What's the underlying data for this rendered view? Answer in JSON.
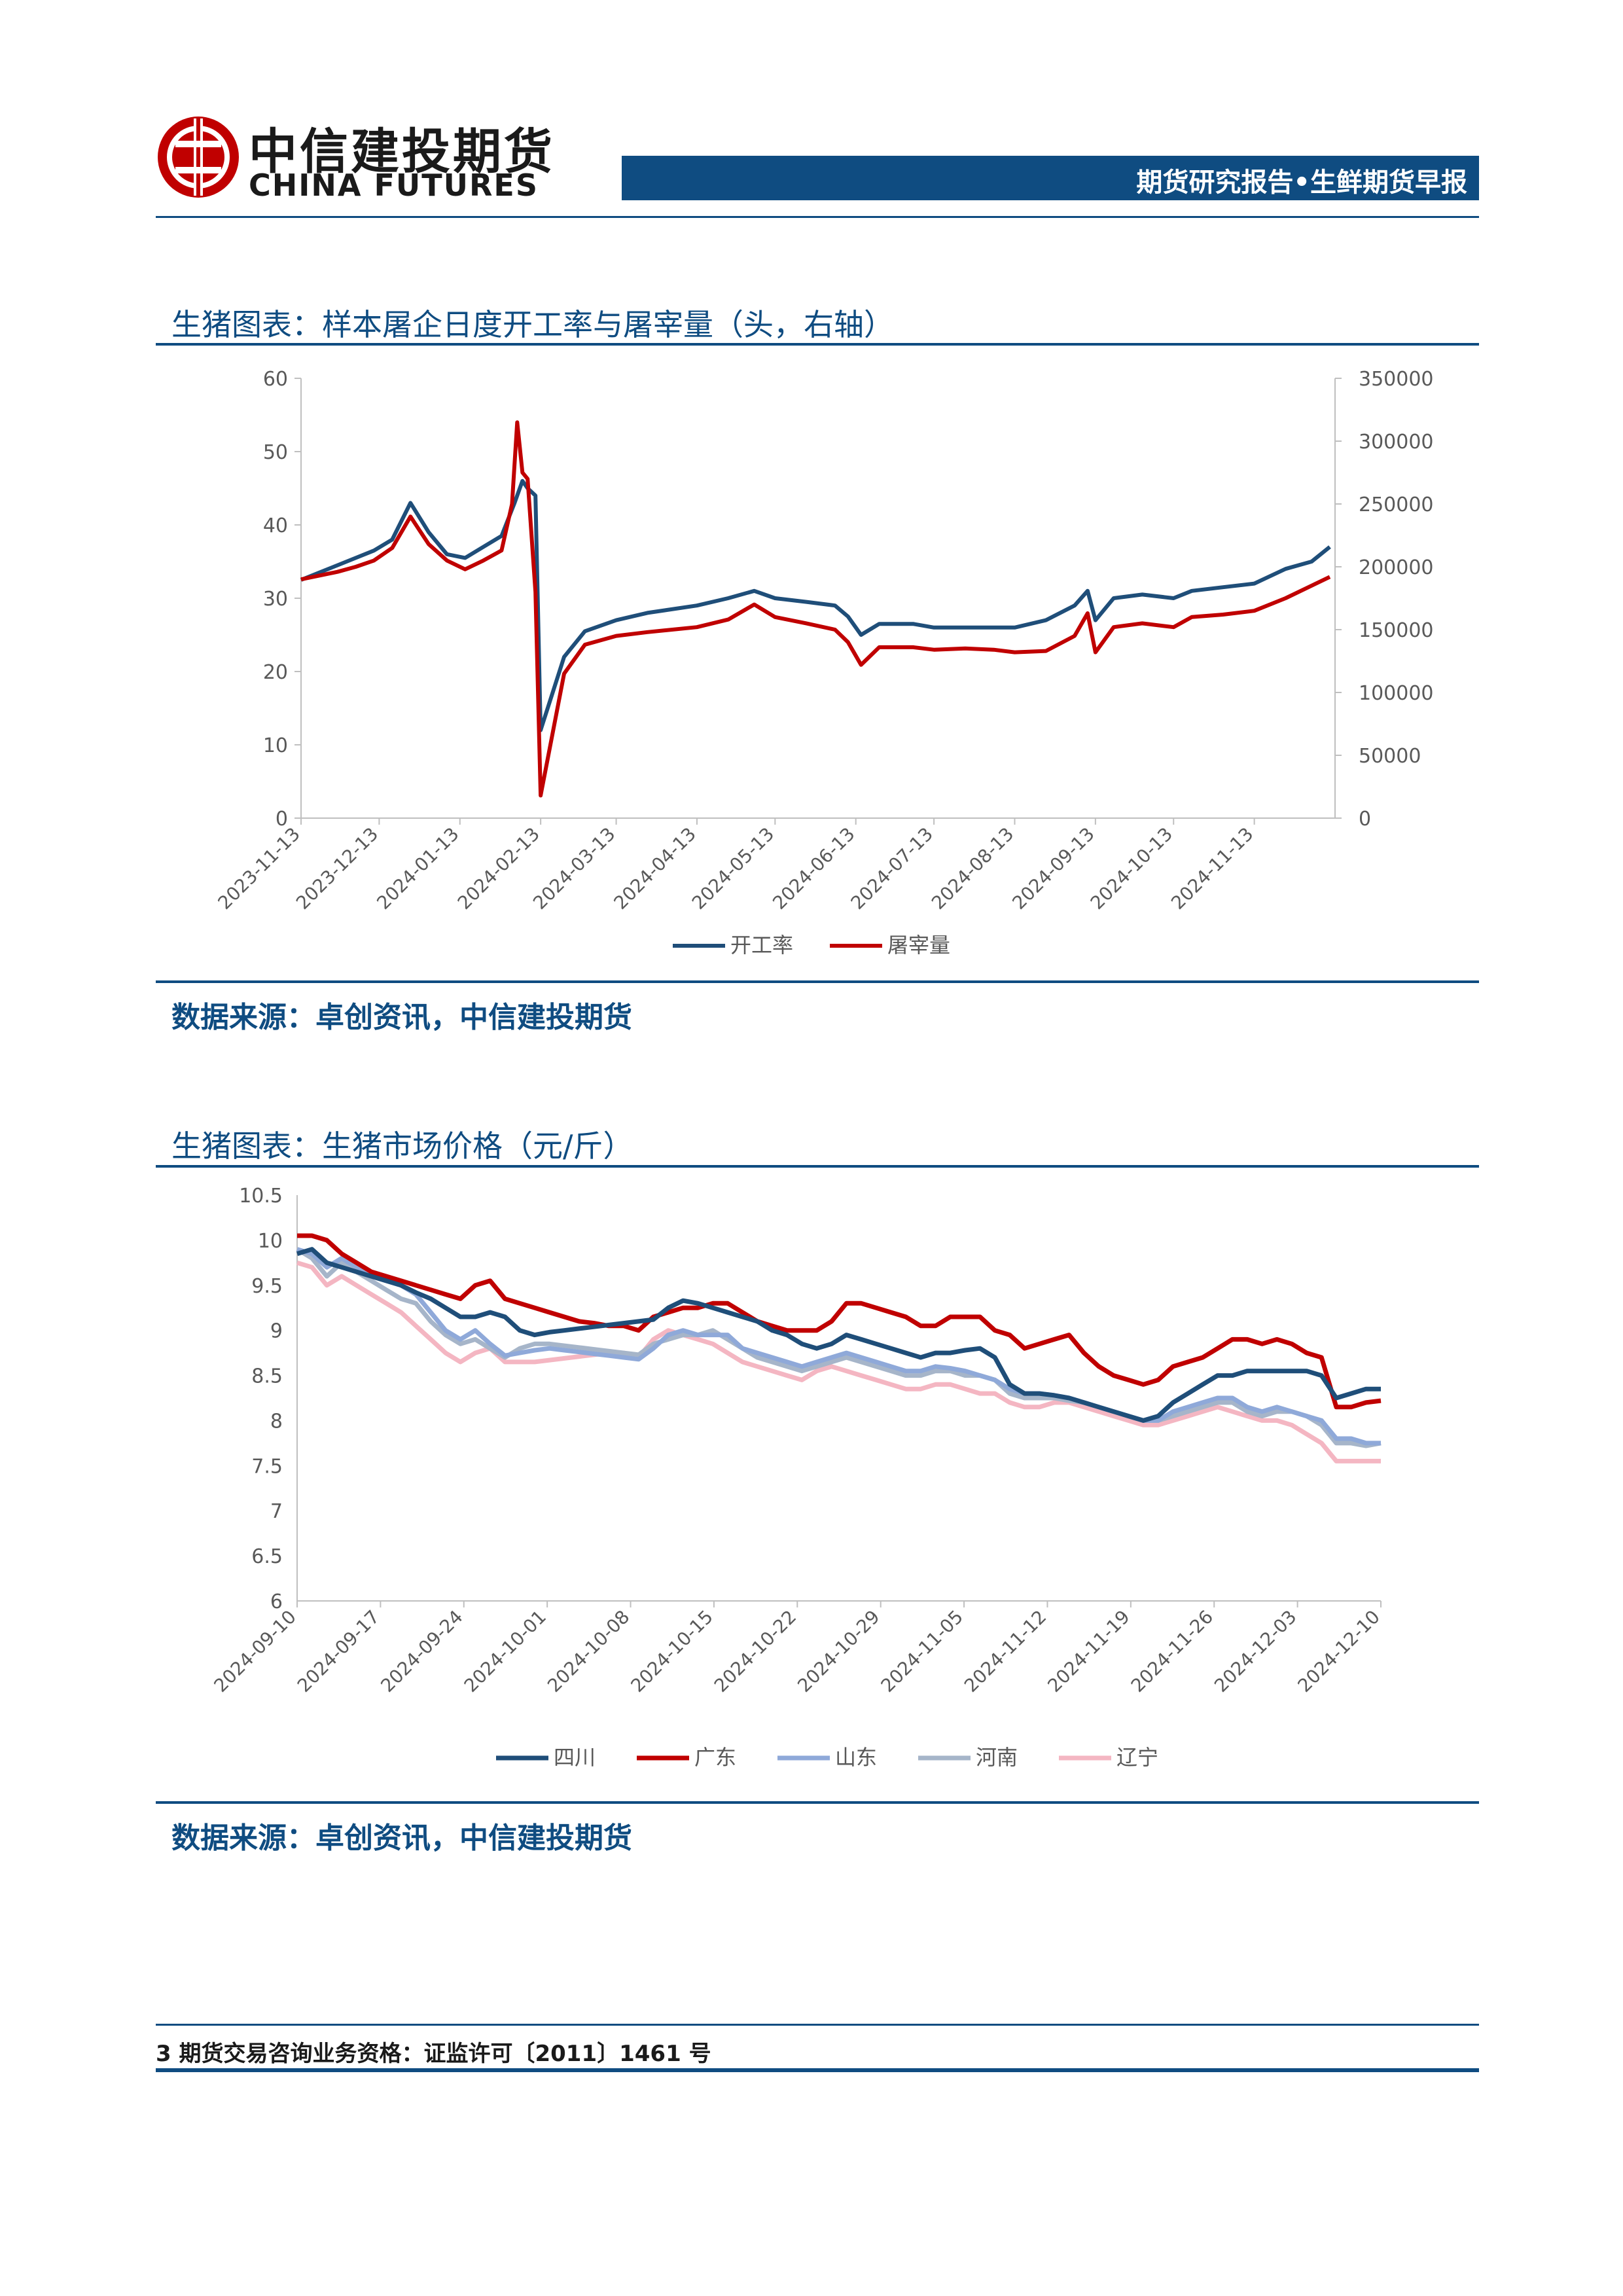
{
  "header": {
    "logo_cn": "中信建投期货",
    "logo_en": "CHINA FUTURES",
    "banner": "期货研究报告•生鲜期货早报"
  },
  "section1": {
    "title": "生猪图表：样本屠企日度开工率与屠宰量（头，右轴）",
    "source": "数据来源：卓创资讯，中信建投期货"
  },
  "section2": {
    "title": "生猪图表：生猪市场价格（元/斤）",
    "source": "数据来源：卓创资讯，中信建投期货"
  },
  "footer": {
    "text": "3 期货交易咨询业务资格：证监许可〔2011〕1461 号"
  },
  "chart_data": [
    {
      "type": "line",
      "title": "",
      "x_tick_labels": [
        "2023-11-13",
        "2023-12-13",
        "2024-01-13",
        "2024-02-13",
        "2024-03-13",
        "2024-04-13",
        "2024-05-13",
        "2024-06-13",
        "2024-07-13",
        "2024-08-13",
        "2024-09-13",
        "2024-10-13",
        "2024-11-13"
      ],
      "y_left": {
        "min": 0,
        "max": 60,
        "ticks": [
          "0",
          "10",
          "20",
          "30",
          "40",
          "50",
          "60"
        ]
      },
      "y_right": {
        "min": 0,
        "max": 350000,
        "ticks": [
          "0",
          "50000",
          "100000",
          "150000",
          "200000",
          "250000",
          "300000",
          "350000"
        ]
      },
      "legend_position": "bottom",
      "series": [
        {
          "name": "开工率",
          "axis": "left",
          "color": "#1f4e79",
          "points": [
            [
              "2023-11-13",
              32.5
            ],
            [
              "2023-11-20",
              33.5
            ],
            [
              "2023-11-27",
              34.5
            ],
            [
              "2023-12-04",
              35.5
            ],
            [
              "2023-12-11",
              36.5
            ],
            [
              "2023-12-18",
              38
            ],
            [
              "2023-12-25",
              43
            ],
            [
              "2024-01-01",
              39
            ],
            [
              "2024-01-08",
              36
            ],
            [
              "2024-01-15",
              35.5
            ],
            [
              "2024-01-22",
              37
            ],
            [
              "2024-01-29",
              38.5
            ],
            [
              "2024-02-03",
              43
            ],
            [
              "2024-02-06",
              46
            ],
            [
              "2024-02-08",
              45
            ],
            [
              "2024-02-11",
              44
            ],
            [
              "2024-02-13",
              12
            ],
            [
              "2024-02-22",
              22
            ],
            [
              "2024-03-01",
              25.5
            ],
            [
              "2024-03-13",
              27
            ],
            [
              "2024-03-25",
              28
            ],
            [
              "2024-04-13",
              29
            ],
            [
              "2024-04-25",
              30
            ],
            [
              "2024-05-05",
              31
            ],
            [
              "2024-05-13",
              30
            ],
            [
              "2024-05-25",
              29.5
            ],
            [
              "2024-06-05",
              29
            ],
            [
              "2024-06-10",
              27.5
            ],
            [
              "2024-06-15",
              25
            ],
            [
              "2024-06-22",
              26.5
            ],
            [
              "2024-07-05",
              26.5
            ],
            [
              "2024-07-13",
              26
            ],
            [
              "2024-07-25",
              26
            ],
            [
              "2024-08-05",
              26
            ],
            [
              "2024-08-13",
              26
            ],
            [
              "2024-08-25",
              27
            ],
            [
              "2024-09-05",
              29
            ],
            [
              "2024-09-10",
              31
            ],
            [
              "2024-09-13",
              27
            ],
            [
              "2024-09-20",
              30
            ],
            [
              "2024-10-01",
              30.5
            ],
            [
              "2024-10-13",
              30
            ],
            [
              "2024-10-20",
              31
            ],
            [
              "2024-11-01",
              31.5
            ],
            [
              "2024-11-13",
              32
            ],
            [
              "2024-11-25",
              34
            ],
            [
              "2024-12-05",
              35
            ],
            [
              "2024-12-12",
              37
            ]
          ]
        },
        {
          "name": "屠宰量",
          "axis": "right",
          "color": "#c00000",
          "points": [
            [
              "2023-11-13",
              190000
            ],
            [
              "2023-11-20",
              193000
            ],
            [
              "2023-11-27",
              196000
            ],
            [
              "2023-12-04",
              200000
            ],
            [
              "2023-12-11",
              205000
            ],
            [
              "2023-12-18",
              215000
            ],
            [
              "2023-12-25",
              240000
            ],
            [
              "2024-01-01",
              218000
            ],
            [
              "2024-01-08",
              205000
            ],
            [
              "2024-01-15",
              198000
            ],
            [
              "2024-01-22",
              205000
            ],
            [
              "2024-01-29",
              213000
            ],
            [
              "2024-02-02",
              250000
            ],
            [
              "2024-02-04",
              315000
            ],
            [
              "2024-02-06",
              275000
            ],
            [
              "2024-02-08",
              270000
            ],
            [
              "2024-02-11",
              180000
            ],
            [
              "2024-02-13",
              18000
            ],
            [
              "2024-02-22",
              115000
            ],
            [
              "2024-03-01",
              138000
            ],
            [
              "2024-03-13",
              145000
            ],
            [
              "2024-03-25",
              148000
            ],
            [
              "2024-04-13",
              152000
            ],
            [
              "2024-04-25",
              158000
            ],
            [
              "2024-05-05",
              170000
            ],
            [
              "2024-05-13",
              160000
            ],
            [
              "2024-05-25",
              155000
            ],
            [
              "2024-06-05",
              150000
            ],
            [
              "2024-06-10",
              140000
            ],
            [
              "2024-06-15",
              122000
            ],
            [
              "2024-06-22",
              136000
            ],
            [
              "2024-07-05",
              136000
            ],
            [
              "2024-07-13",
              134000
            ],
            [
              "2024-07-25",
              135000
            ],
            [
              "2024-08-05",
              134000
            ],
            [
              "2024-08-13",
              132000
            ],
            [
              "2024-08-25",
              133000
            ],
            [
              "2024-09-05",
              145000
            ],
            [
              "2024-09-10",
              163000
            ],
            [
              "2024-09-13",
              132000
            ],
            [
              "2024-09-20",
              152000
            ],
            [
              "2024-10-01",
              155000
            ],
            [
              "2024-10-13",
              152000
            ],
            [
              "2024-10-20",
              160000
            ],
            [
              "2024-11-01",
              162000
            ],
            [
              "2024-11-13",
              165000
            ],
            [
              "2024-11-25",
              175000
            ],
            [
              "2024-12-05",
              185000
            ],
            [
              "2024-12-12",
              192000
            ]
          ]
        }
      ]
    },
    {
      "type": "line",
      "title": "",
      "x_tick_labels": [
        "2024-09-10",
        "2024-09-17",
        "2024-09-24",
        "2024-10-01",
        "2024-10-08",
        "2024-10-15",
        "2024-10-22",
        "2024-10-29",
        "2024-11-05",
        "2024-11-12",
        "2024-11-19",
        "2024-11-26",
        "2024-12-03",
        "2024-12-10"
      ],
      "y": {
        "min": 6,
        "max": 10.5,
        "ticks": [
          "6",
          "6.5",
          "7",
          "7.5",
          "8",
          "8.5",
          "9",
          "9.5",
          "10",
          "10.5"
        ]
      },
      "legend_position": "bottom",
      "series": [
        {
          "name": "四川",
          "color": "#1f4e79",
          "values": [
            9.85,
            9.9,
            9.75,
            9.7,
            9.65,
            9.6,
            9.55,
            9.5,
            9.42,
            9.35,
            9.25,
            9.15,
            9.15,
            9.2,
            9.15,
            9.0,
            8.95,
            8.98,
            9.0,
            9.02,
            9.04,
            9.06,
            9.08,
            9.1,
            9.12,
            9.25,
            9.33,
            9.3,
            9.25,
            9.2,
            9.15,
            9.1,
            9.0,
            8.95,
            8.85,
            8.8,
            8.85,
            8.95,
            8.9,
            8.85,
            8.8,
            8.75,
            8.7,
            8.75,
            8.75,
            8.78,
            8.8,
            8.7,
            8.4,
            8.3,
            8.3,
            8.28,
            8.25,
            8.2,
            8.15,
            8.1,
            8.05,
            8.0,
            8.05,
            8.2,
            8.3,
            8.4,
            8.5,
            8.5,
            8.55,
            8.55,
            8.55,
            8.55,
            8.55,
            8.5,
            8.25,
            8.3,
            8.35,
            8.35
          ]
        },
        {
          "name": "广东",
          "color": "#c00000",
          "values": [
            10.05,
            10.05,
            10.0,
            9.85,
            9.75,
            9.65,
            9.6,
            9.55,
            9.5,
            9.45,
            9.4,
            9.35,
            9.5,
            9.55,
            9.35,
            9.3,
            9.25,
            9.2,
            9.15,
            9.1,
            9.08,
            9.05,
            9.05,
            9.0,
            9.15,
            9.2,
            9.25,
            9.25,
            9.3,
            9.3,
            9.2,
            9.1,
            9.05,
            9.0,
            9.0,
            9.0,
            9.1,
            9.3,
            9.3,
            9.25,
            9.2,
            9.15,
            9.05,
            9.05,
            9.15,
            9.15,
            9.15,
            9.0,
            8.95,
            8.8,
            8.85,
            8.9,
            8.95,
            8.75,
            8.6,
            8.5,
            8.45,
            8.4,
            8.45,
            8.6,
            8.65,
            8.7,
            8.8,
            8.9,
            8.9,
            8.85,
            8.9,
            8.85,
            8.75,
            8.7,
            8.15,
            8.15,
            8.2,
            8.22
          ]
        },
        {
          "name": "山东",
          "color": "#8fa9d9",
          "values": [
            9.9,
            9.85,
            9.7,
            9.8,
            9.7,
            9.6,
            9.55,
            9.5,
            9.4,
            9.2,
            9.0,
            8.9,
            9.0,
            8.85,
            8.72,
            8.75,
            8.78,
            8.8,
            8.78,
            8.76,
            8.74,
            8.72,
            8.7,
            8.68,
            8.8,
            8.95,
            9.0,
            8.95,
            8.95,
            8.95,
            8.8,
            8.75,
            8.7,
            8.65,
            8.6,
            8.65,
            8.7,
            8.75,
            8.7,
            8.65,
            8.6,
            8.55,
            8.55,
            8.6,
            8.58,
            8.55,
            8.5,
            8.45,
            8.35,
            8.3,
            8.3,
            8.28,
            8.25,
            8.2,
            8.15,
            8.1,
            8.05,
            8.0,
            8.0,
            8.1,
            8.15,
            8.2,
            8.25,
            8.25,
            8.15,
            8.1,
            8.15,
            8.1,
            8.05,
            8.0,
            7.8,
            7.8,
            7.75,
            7.75
          ]
        },
        {
          "name": "河南",
          "color": "#a6b5c9",
          "values": [
            9.9,
            9.8,
            9.6,
            9.75,
            9.65,
            9.55,
            9.45,
            9.35,
            9.3,
            9.1,
            8.95,
            8.85,
            8.9,
            8.8,
            8.7,
            8.8,
            8.85,
            8.85,
            8.83,
            8.81,
            8.79,
            8.77,
            8.75,
            8.73,
            8.85,
            8.9,
            8.95,
            8.95,
            9.0,
            8.9,
            8.8,
            8.7,
            8.65,
            8.6,
            8.55,
            8.6,
            8.65,
            8.7,
            8.65,
            8.6,
            8.55,
            8.5,
            8.5,
            8.55,
            8.55,
            8.5,
            8.5,
            8.45,
            8.3,
            8.25,
            8.25,
            8.25,
            8.22,
            8.2,
            8.15,
            8.1,
            8.05,
            8.0,
            8.0,
            8.05,
            8.1,
            8.15,
            8.2,
            8.2,
            8.1,
            8.05,
            8.1,
            8.1,
            8.05,
            7.95,
            7.75,
            7.75,
            7.72,
            7.75
          ]
        },
        {
          "name": "辽宁",
          "color": "#f4b6c2",
          "values": [
            9.75,
            9.7,
            9.5,
            9.6,
            9.5,
            9.4,
            9.3,
            9.2,
            9.05,
            8.9,
            8.75,
            8.65,
            8.75,
            8.8,
            8.65,
            8.65,
            8.65,
            8.67,
            8.69,
            8.71,
            8.73,
            8.75,
            8.75,
            8.7,
            8.9,
            9.0,
            8.95,
            8.9,
            8.85,
            8.75,
            8.65,
            8.6,
            8.55,
            8.5,
            8.45,
            8.55,
            8.6,
            8.55,
            8.5,
            8.45,
            8.4,
            8.35,
            8.35,
            8.4,
            8.4,
            8.35,
            8.3,
            8.3,
            8.2,
            8.15,
            8.15,
            8.2,
            8.2,
            8.15,
            8.1,
            8.05,
            8.0,
            7.95,
            7.95,
            8.0,
            8.05,
            8.1,
            8.15,
            8.1,
            8.05,
            8.0,
            8.0,
            7.95,
            7.85,
            7.75,
            7.55,
            7.55,
            7.55,
            7.55
          ]
        }
      ]
    }
  ]
}
